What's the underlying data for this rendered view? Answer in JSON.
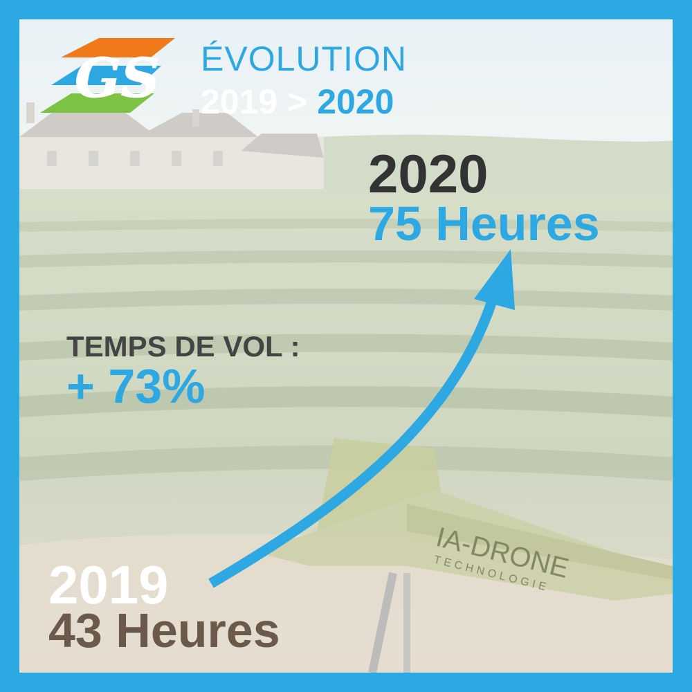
{
  "header": {
    "title_line1": "ÉVOLUTION",
    "year_from": "2019",
    "separator": ">",
    "year_to": "2020"
  },
  "logo": {
    "text": "GS",
    "colors": [
      "#f07a1a",
      "#2ea8e3",
      "#7cc243"
    ]
  },
  "stat_2020": {
    "year": "2020",
    "hours": "75 Heures"
  },
  "flight_time": {
    "label": "TEMPS DE VOL :",
    "change": "+ 73%"
  },
  "stat_2019": {
    "year": "2019",
    "hours": "43 Heures"
  },
  "drone_brand": {
    "name": "IA-DRONE",
    "subtitle": "TECHNOLOGIE"
  },
  "colors": {
    "frame": "#2ea8e3",
    "accent": "#2ea8e3",
    "dark_text": "#333333",
    "brown_text": "#6b5a4a"
  }
}
